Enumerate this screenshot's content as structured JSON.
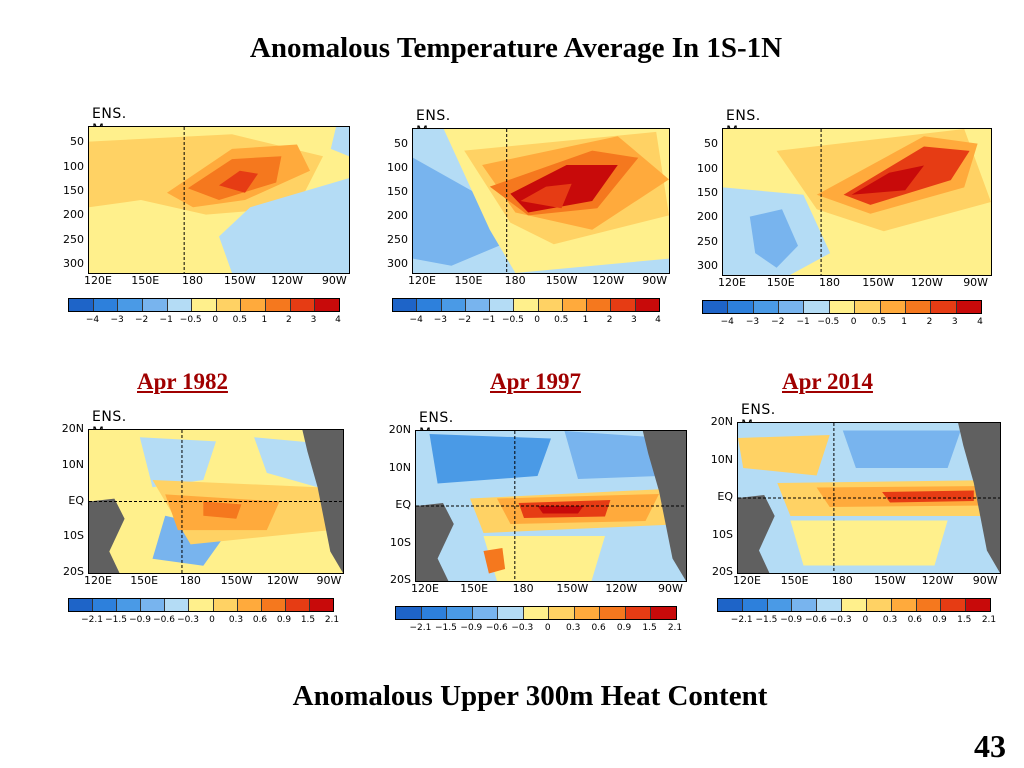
{
  "slide": {
    "top_title": "Anomalous Temperature Average In 1S-1N",
    "bottom_title": "Anomalous Upper 300m Heat Content",
    "page_number": "43"
  },
  "dates": [
    "Apr 1982",
    "Apr 1997",
    "Apr 2014"
  ],
  "map_title": "ENS. Mean",
  "depth_panels": {
    "y_ticks": [
      "50",
      "100",
      "150",
      "200",
      "250",
      "300"
    ],
    "x_ticks": [
      "120E",
      "150E",
      "180",
      "150W",
      "120W",
      "90W"
    ],
    "colorbar_labels": [
      "−4",
      "−3",
      "−2",
      "−1",
      "−0.5",
      "0",
      "0.5",
      "1",
      "2",
      "3",
      "4"
    ]
  },
  "heat_panels": {
    "y_ticks": [
      "20N",
      "10N",
      "EQ",
      "10S",
      "20S"
    ],
    "x_ticks": [
      "120E",
      "150E",
      "180",
      "150W",
      "120W",
      "90W"
    ],
    "colorbar_labels": [
      "−2.1",
      "−1.5",
      "−0.9",
      "−0.6",
      "−0.3",
      "0",
      "0.3",
      "0.6",
      "0.9",
      "1.5",
      "2.1"
    ]
  },
  "colors": {
    "palette": [
      "#1e64c8",
      "#2d80dc",
      "#4a9ae6",
      "#78b4ee",
      "#b4dcf5",
      "#fff08c",
      "#ffd264",
      "#ffaa3c",
      "#f5781e",
      "#e63c14",
      "#c80a0a"
    ],
    "land": "#606060",
    "date_label": "#a00000"
  }
}
